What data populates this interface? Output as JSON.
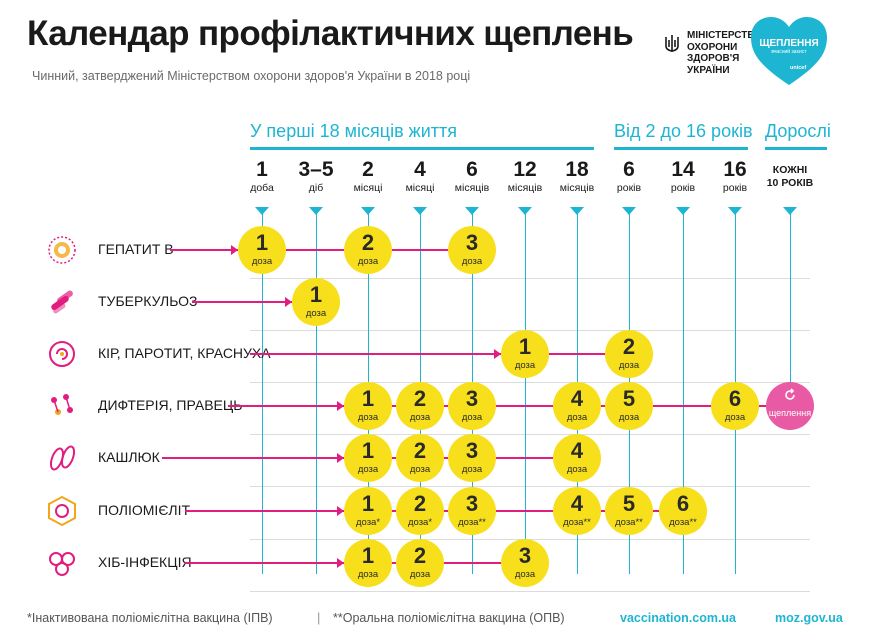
{
  "title": "Календар профілактичних щеплень",
  "subtitle": "Чинний, затверджений Міністерством охорони здоров'я України в 2018 році",
  "ministry": "МІНІСТЕРСТВО\nОХОРОНИ\nЗДОРОВ'Я\nУКРАЇНИ",
  "badge": {
    "title": "ЩЕПЛЕННЯ",
    "tagline": "вчасний захист",
    "partner": "unicef"
  },
  "groups": [
    {
      "label": "У перші 18 місяців життя"
    },
    {
      "label": "Від 2 до 16 років"
    },
    {
      "label": "Дорослі"
    }
  ],
  "columns": [
    {
      "num": "1",
      "unit": "доба"
    },
    {
      "num": "3–5",
      "unit": "діб"
    },
    {
      "num": "2",
      "unit": "місяці"
    },
    {
      "num": "4",
      "unit": "місяці"
    },
    {
      "num": "6",
      "unit": "місяців"
    },
    {
      "num": "12",
      "unit": "місяців"
    },
    {
      "num": "18",
      "unit": "місяців"
    },
    {
      "num": "6",
      "unit": "років"
    },
    {
      "num": "14",
      "unit": "років"
    },
    {
      "num": "16",
      "unit": "років"
    },
    {
      "num": "КОЖНІ",
      "unit": "10 РОКІВ"
    }
  ],
  "dose_label": "доза",
  "adult_label": "щеплення",
  "diseases": [
    {
      "name": "ГЕПАТИТ В",
      "icon": "hepatitis-b-virus-icon",
      "doses": [
        {
          "col": 0,
          "n": "1",
          "mark": ""
        },
        {
          "col": 2,
          "n": "2",
          "mark": ""
        },
        {
          "col": 4,
          "n": "3",
          "mark": ""
        }
      ]
    },
    {
      "name": "ТУБЕРКУЛЬОЗ",
      "icon": "tuberculosis-bacteria-icon",
      "doses": [
        {
          "col": 1,
          "n": "1",
          "mark": ""
        }
      ]
    },
    {
      "name": "КІР, ПАРОТИТ, КРАСНУХА",
      "icon": "measles-virus-icon",
      "doses": [
        {
          "col": 5,
          "n": "1",
          "mark": ""
        },
        {
          "col": 7,
          "n": "2",
          "mark": ""
        }
      ]
    },
    {
      "name": "ДИФТЕРІЯ, ПРАВЕЦЬ",
      "icon": "diphtheria-tetanus-icon",
      "doses": [
        {
          "col": 2,
          "n": "1",
          "mark": ""
        },
        {
          "col": 3,
          "n": "2",
          "mark": ""
        },
        {
          "col": 4,
          "n": "3",
          "mark": ""
        },
        {
          "col": 6,
          "n": "4",
          "mark": ""
        },
        {
          "col": 7,
          "n": "5",
          "mark": ""
        },
        {
          "col": 9,
          "n": "6",
          "mark": ""
        }
      ],
      "adult": true
    },
    {
      "name": "КАШЛЮК",
      "icon": "pertussis-bacteria-icon",
      "doses": [
        {
          "col": 2,
          "n": "1",
          "mark": ""
        },
        {
          "col": 3,
          "n": "2",
          "mark": ""
        },
        {
          "col": 4,
          "n": "3",
          "mark": ""
        },
        {
          "col": 6,
          "n": "4",
          "mark": ""
        }
      ]
    },
    {
      "name": "ПОЛІОМІЄЛІТ",
      "icon": "polio-virus-icon",
      "doses": [
        {
          "col": 2,
          "n": "1",
          "mark": "*"
        },
        {
          "col": 3,
          "n": "2",
          "mark": "*"
        },
        {
          "col": 4,
          "n": "3",
          "mark": "**"
        },
        {
          "col": 6,
          "n": "4",
          "mark": "**"
        },
        {
          "col": 7,
          "n": "5",
          "mark": "**"
        },
        {
          "col": 8,
          "n": "6",
          "mark": "**"
        }
      ]
    },
    {
      "name": "ХІБ-ІНФЕКЦІЯ",
      "icon": "hib-bacteria-icon",
      "doses": [
        {
          "col": 2,
          "n": "1",
          "mark": ""
        },
        {
          "col": 3,
          "n": "2",
          "mark": ""
        },
        {
          "col": 5,
          "n": "3",
          "mark": ""
        }
      ]
    }
  ],
  "footnotes": {
    "ipv": "*Інактивована поліомієлітна вакцина (ІПВ)",
    "opv": "**Оральна поліомієлітна вакцина (ОПВ)",
    "separator": "|"
  },
  "links": {
    "site1": "vaccination.com.ua",
    "site2": "moz.gov.ua"
  },
  "colors": {
    "accent": "#1eb5d2",
    "line": "#e11d7f",
    "dose": "#f7e01b",
    "adult": "#e95aa5"
  }
}
